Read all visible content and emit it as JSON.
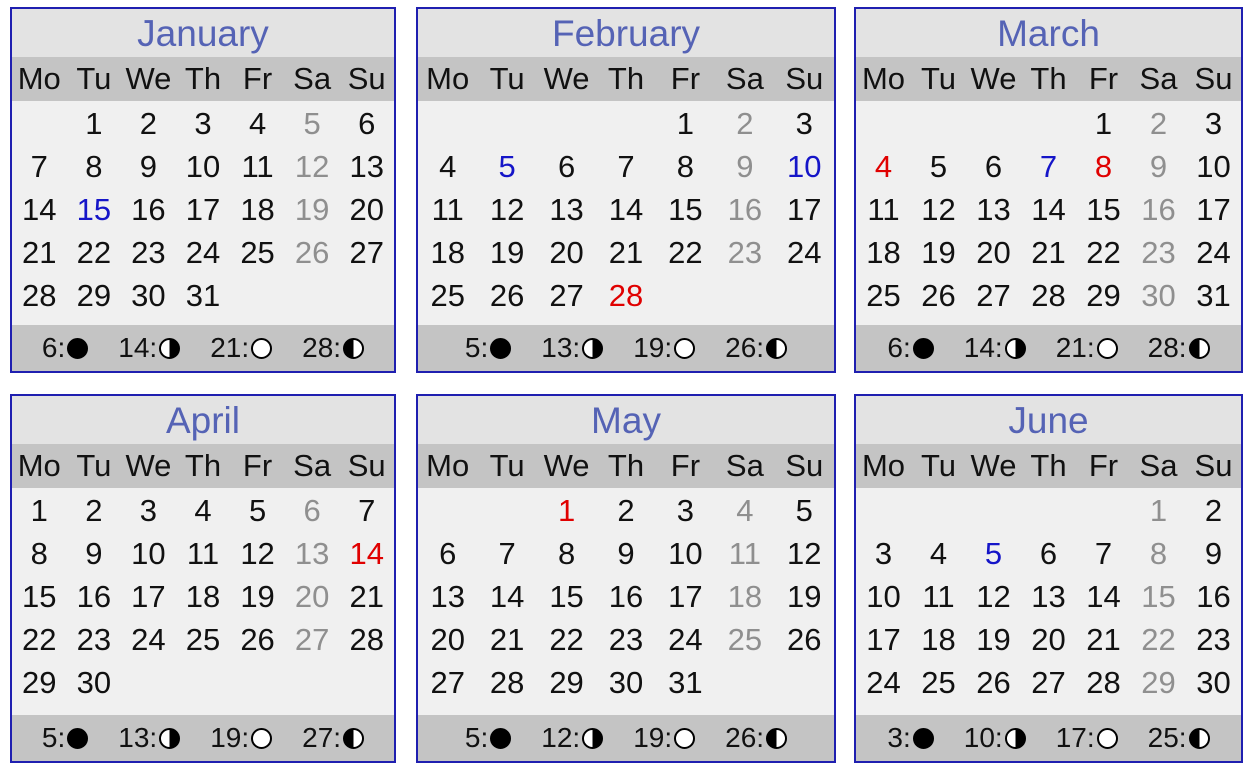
{
  "weekdays": [
    "Mo",
    "Tu",
    "We",
    "Th",
    "Fr",
    "Sa",
    "Su"
  ],
  "colors": {
    "title": "#5563b5",
    "border": "#1f1fb0",
    "saturday": "#8f8f8f",
    "blue": "#1515c8",
    "red": "#e00000"
  },
  "months": [
    {
      "name": "January",
      "offset": 1,
      "days": 31,
      "blue": [
        15
      ],
      "red": [],
      "moons": [
        {
          "day": "6",
          "phase": "new"
        },
        {
          "day": "14",
          "phase": "first"
        },
        {
          "day": "21",
          "phase": "full"
        },
        {
          "day": "28",
          "phase": "last"
        }
      ]
    },
    {
      "name": "February",
      "offset": 4,
      "days": 28,
      "blue": [
        5,
        10
      ],
      "red": [
        28
      ],
      "moons": [
        {
          "day": "5",
          "phase": "new"
        },
        {
          "day": "13",
          "phase": "first"
        },
        {
          "day": "19",
          "phase": "full"
        },
        {
          "day": "26",
          "phase": "last"
        }
      ]
    },
    {
      "name": "March",
      "offset": 4,
      "days": 31,
      "blue": [
        7
      ],
      "red": [
        4,
        8
      ],
      "moons": [
        {
          "day": "6",
          "phase": "new"
        },
        {
          "day": "14",
          "phase": "first"
        },
        {
          "day": "21",
          "phase": "full"
        },
        {
          "day": "28",
          "phase": "last"
        }
      ]
    },
    {
      "name": "April",
      "offset": 0,
      "days": 30,
      "blue": [],
      "red": [
        14
      ],
      "moons": [
        {
          "day": "5",
          "phase": "new"
        },
        {
          "day": "13",
          "phase": "first"
        },
        {
          "day": "19",
          "phase": "full"
        },
        {
          "day": "27",
          "phase": "last"
        }
      ]
    },
    {
      "name": "May",
      "offset": 2,
      "days": 31,
      "blue": [],
      "red": [
        1
      ],
      "moons": [
        {
          "day": "5",
          "phase": "new"
        },
        {
          "day": "12",
          "phase": "first"
        },
        {
          "day": "19",
          "phase": "full"
        },
        {
          "day": "26",
          "phase": "last"
        }
      ]
    },
    {
      "name": "June",
      "offset": 5,
      "days": 30,
      "blue": [
        5
      ],
      "red": [],
      "moons": [
        {
          "day": "3",
          "phase": "new"
        },
        {
          "day": "10",
          "phase": "first"
        },
        {
          "day": "17",
          "phase": "full"
        },
        {
          "day": "25",
          "phase": "last"
        }
      ]
    }
  ]
}
